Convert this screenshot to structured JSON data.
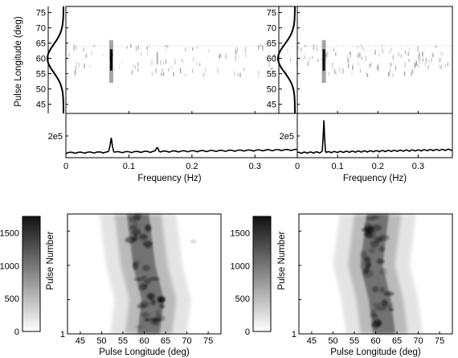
{
  "chart_data": [
    {
      "type": "heatmap",
      "panel": "top-left",
      "title": "",
      "xlabel": "Frequency (Hz)",
      "ylabel": "Pulse Longitude (deg)",
      "xticks": [
        0,
        0.1,
        0.2,
        0.3
      ],
      "yticks": [
        45,
        50,
        55,
        60,
        65,
        70,
        75
      ],
      "xlim": [
        0,
        0.385
      ],
      "ylim": [
        42,
        77
      ],
      "profile_peak_deg": 60,
      "feature_freq_hz": 0.072,
      "feature_span_deg": [
        52,
        66
      ],
      "subplot": {
        "type": "line",
        "ytick_label": "2e5",
        "peaks": [
          {
            "freq": 0.072,
            "height": 1.0
          },
          {
            "freq": 0.145,
            "height": 0.3
          }
        ]
      }
    },
    {
      "type": "heatmap",
      "panel": "top-right",
      "title": "",
      "xlabel": "Frequency (Hz)",
      "ylabel": "",
      "xticks": [
        0,
        0.1,
        0.2,
        0.3
      ],
      "yticks": [
        45,
        50,
        55,
        60,
        65,
        70,
        75
      ],
      "xlim": [
        0,
        0.385
      ],
      "ylim": [
        42,
        77
      ],
      "profile_peak_deg": 60,
      "feature_freq_hz": 0.066,
      "feature_span_deg": [
        52,
        66
      ],
      "subplot": {
        "type": "line",
        "ytick_label": "2e5",
        "peaks": [
          {
            "freq": 0.066,
            "height": 2.2
          }
        ]
      }
    },
    {
      "type": "heatmap",
      "panel": "bottom-left",
      "title": "",
      "xlabel": "Pulse Longitude (deg)",
      "ylabel": "Pulse Number",
      "xticks": [
        45,
        50,
        55,
        60,
        65,
        70,
        75
      ],
      "yticks": [
        1,
        500,
        1000,
        1500
      ],
      "xlim": [
        42,
        78
      ],
      "ylim": [
        1,
        1750
      ],
      "colorbar": {
        "ticks": [
          0,
          500,
          1000,
          1500
        ],
        "range": [
          0,
          1750
        ]
      },
      "band_center_deg": [
        {
          "pulse": 1,
          "deg": 61
        },
        {
          "pulse": 500,
          "deg": 62
        },
        {
          "pulse": 1000,
          "deg": 60
        },
        {
          "pulse": 1750,
          "deg": 58.5
        }
      ]
    },
    {
      "type": "heatmap",
      "panel": "bottom-right",
      "title": "",
      "xlabel": "Pulse Longitude (deg)",
      "ylabel": "Pulse Number",
      "xticks": [
        45,
        50,
        55,
        60,
        65,
        70,
        75
      ],
      "yticks": [
        1,
        500,
        1000,
        1500
      ],
      "xlim": [
        42,
        78
      ],
      "ylim": [
        1,
        1750
      ],
      "colorbar": {
        "ticks": [
          0,
          500,
          1000,
          1500
        ],
        "range": [
          0,
          1750
        ]
      },
      "band_center_deg": [
        {
          "pulse": 1,
          "deg": 62
        },
        {
          "pulse": 500,
          "deg": 61
        },
        {
          "pulse": 1000,
          "deg": 59
        },
        {
          "pulse": 1750,
          "deg": 60.5
        }
      ]
    }
  ]
}
